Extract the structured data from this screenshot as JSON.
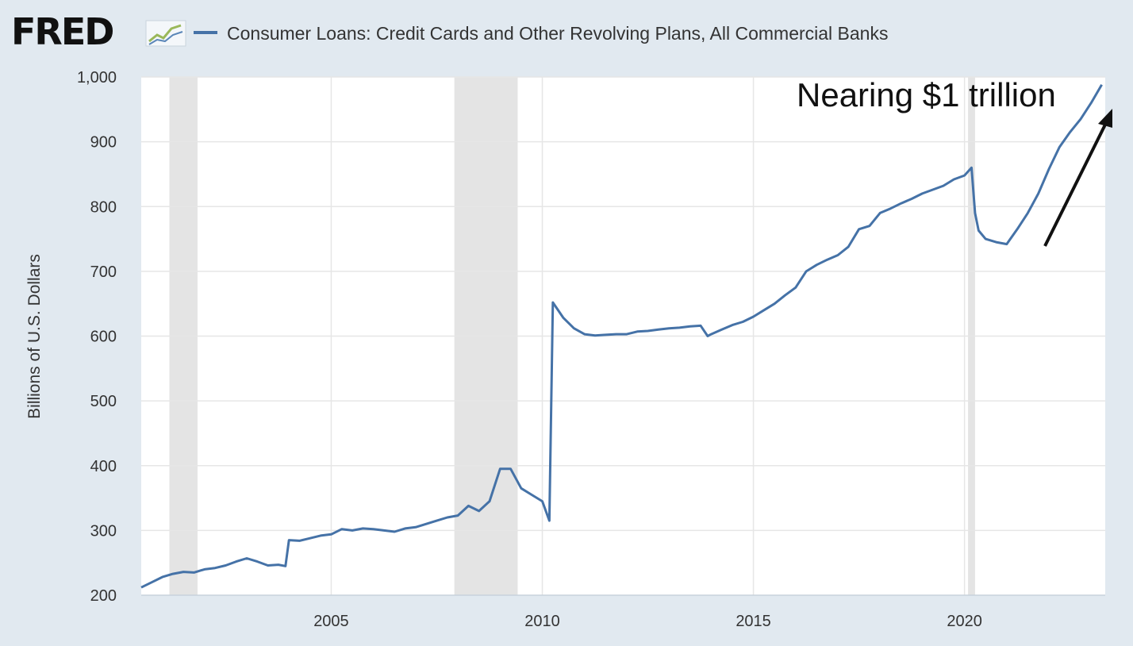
{
  "header": {
    "logo_text": "FRED",
    "logo_icon": "line-chart-icon",
    "legend_label": "Consumer Loans: Credit Cards and Other Revolving Plans, All Commercial Banks"
  },
  "colors": {
    "series": "#4572a7",
    "background": "#e1e9f0",
    "plot_background": "#ffffff",
    "recession": "#e4e4e4",
    "gridline": "#e6e6e6",
    "annotation": "#111111"
  },
  "chart_data": {
    "type": "line",
    "title": "",
    "ylabel": "Billions of U.S. Dollars",
    "xlabel": "",
    "ylim": [
      200,
      1000
    ],
    "xlim": [
      "2000-07-01",
      "2023-05-01"
    ],
    "yticks": [
      200,
      300,
      400,
      500,
      600,
      700,
      800,
      900,
      1000
    ],
    "ytick_labels": [
      "200",
      "300",
      "400",
      "500",
      "600",
      "700",
      "800",
      "900",
      "1,000"
    ],
    "xticks": [
      "2005",
      "2010",
      "2015",
      "2020"
    ],
    "grid": true,
    "legend_position": "top",
    "recessions": [
      {
        "start": "2001-03-01",
        "end": "2001-11-01"
      },
      {
        "start": "2007-12-01",
        "end": "2009-06-01"
      },
      {
        "start": "2020-02-01",
        "end": "2020-04-01"
      }
    ],
    "series": [
      {
        "name": "Consumer Loans: Credit Cards and Other Revolving Plans, All Commercial Banks",
        "x": [
          "2000-07-01",
          "2000-10-01",
          "2001-01-01",
          "2001-04-01",
          "2001-07-01",
          "2001-10-01",
          "2002-01-01",
          "2002-04-01",
          "2002-07-01",
          "2002-10-01",
          "2003-01-01",
          "2003-04-01",
          "2003-07-01",
          "2003-10-01",
          "2003-12-01",
          "2004-01-01",
          "2004-04-01",
          "2004-07-01",
          "2004-10-01",
          "2005-01-01",
          "2005-04-01",
          "2005-07-01",
          "2005-10-01",
          "2006-01-01",
          "2006-04-01",
          "2006-07-01",
          "2006-10-01",
          "2007-01-01",
          "2007-04-01",
          "2007-07-01",
          "2007-10-01",
          "2008-01-01",
          "2008-04-01",
          "2008-07-01",
          "2008-10-01",
          "2009-01-01",
          "2009-04-01",
          "2009-07-01",
          "2009-10-01",
          "2010-01-01",
          "2010-03-01",
          "2010-04-01",
          "2010-07-01",
          "2010-10-01",
          "2011-01-01",
          "2011-04-01",
          "2011-07-01",
          "2011-10-01",
          "2012-01-01",
          "2012-04-01",
          "2012-07-01",
          "2012-10-01",
          "2013-01-01",
          "2013-04-01",
          "2013-07-01",
          "2013-10-01",
          "2013-12-01",
          "2014-01-01",
          "2014-04-01",
          "2014-07-01",
          "2014-10-01",
          "2015-01-01",
          "2015-04-01",
          "2015-07-01",
          "2015-10-01",
          "2016-01-01",
          "2016-04-01",
          "2016-07-01",
          "2016-10-01",
          "2017-01-01",
          "2017-04-01",
          "2017-07-01",
          "2017-10-01",
          "2018-01-01",
          "2018-04-01",
          "2018-07-01",
          "2018-10-01",
          "2019-01-01",
          "2019-04-01",
          "2019-07-01",
          "2019-10-01",
          "2020-01-01",
          "2020-03-01",
          "2020-04-01",
          "2020-05-01",
          "2020-07-01",
          "2020-10-01",
          "2021-01-01",
          "2021-04-01",
          "2021-07-01",
          "2021-10-01",
          "2022-01-01",
          "2022-04-01",
          "2022-07-01",
          "2022-10-01",
          "2023-01-01",
          "2023-04-01"
        ],
        "values": [
          212,
          220,
          228,
          233,
          236,
          235,
          240,
          242,
          246,
          252,
          257,
          252,
          246,
          247,
          245,
          285,
          284,
          288,
          292,
          294,
          302,
          300,
          303,
          302,
          300,
          298,
          303,
          305,
          310,
          315,
          320,
          323,
          338,
          330,
          345,
          395,
          395,
          365,
          355,
          345,
          315,
          652,
          628,
          612,
          603,
          601,
          602,
          603,
          603,
          607,
          608,
          610,
          612,
          613,
          615,
          616,
          600,
          603,
          610,
          617,
          622,
          630,
          640,
          650,
          663,
          675,
          700,
          710,
          718,
          725,
          738,
          765,
          770,
          790,
          797,
          805,
          812,
          820,
          826,
          832,
          842,
          848,
          860,
          790,
          763,
          750,
          745,
          742,
          765,
          790,
          820,
          858,
          892,
          915,
          935,
          960,
          988
        ]
      }
    ],
    "annotations": [
      {
        "text": "Nearing $1 trillion",
        "type": "arrow"
      }
    ]
  }
}
